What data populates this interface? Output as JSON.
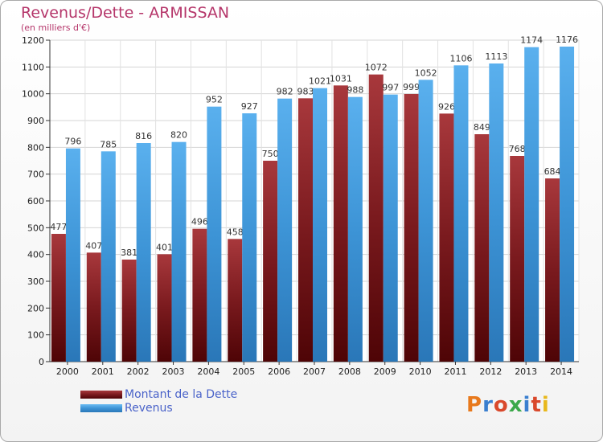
{
  "header": {
    "title": "Revenus/Dette - ARMISSAN",
    "subtitle": "(en milliers d'€)"
  },
  "legend": {
    "items": [
      {
        "label": "Montant de la Dette",
        "color": "#7a1a1e"
      },
      {
        "label": "Revenus",
        "color": "#3d94d6"
      }
    ]
  },
  "logo": {
    "text": "Proxiti",
    "letter_colors": [
      "#e8791c",
      "#3a7fcf",
      "#d9482b",
      "#3ba84a",
      "#3a7fcf",
      "#d9482b",
      "#e8b81c"
    ]
  },
  "chart_data": {
    "type": "bar",
    "categories": [
      "2000",
      "2001",
      "2002",
      "2003",
      "2004",
      "2005",
      "2006",
      "2007",
      "2008",
      "2009",
      "2010",
      "2011",
      "2012",
      "2013",
      "2014"
    ],
    "series": [
      {
        "name": "Montant de la Dette",
        "color": "#7a1a1e",
        "values": [
          477,
          407,
          381,
          401,
          496,
          458,
          750,
          983,
          1031,
          1072,
          999,
          926,
          849,
          768,
          684
        ]
      },
      {
        "name": "Revenus",
        "color": "#3d94d6",
        "values": [
          796,
          785,
          816,
          820,
          952,
          927,
          982,
          1021,
          988,
          997,
          1052,
          1106,
          1113,
          1174,
          1176
        ]
      }
    ],
    "yticks": [
      0,
      100,
      200,
      300,
      400,
      500,
      600,
      700,
      800,
      900,
      1000,
      1100,
      1200
    ],
    "ylim": [
      0,
      1200
    ],
    "grid": true,
    "legend_position": "bottom-left"
  }
}
